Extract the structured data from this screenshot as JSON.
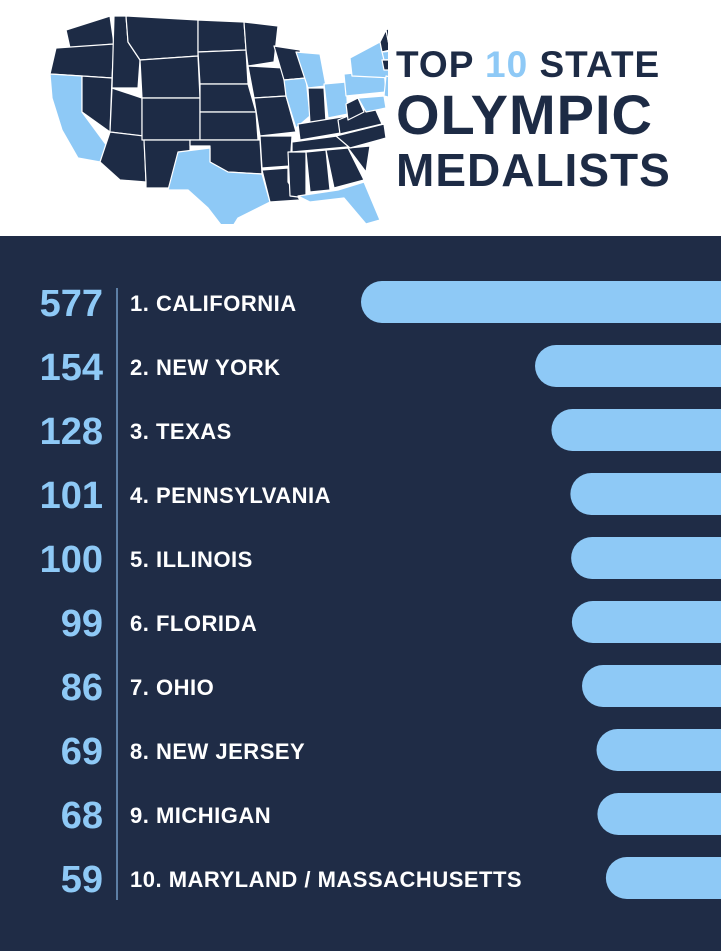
{
  "header": {
    "title_line1_a": "TOP ",
    "title_line1_accent": "10",
    "title_line1_b": " STATE",
    "title_line2": "OLYMPIC",
    "title_line3": "MEDALISTS"
  },
  "colors": {
    "navy": "#1f2c46",
    "accent": "#8ec9f6",
    "map_dark": "#1d2b45",
    "map_highlight": "#8ec9f6"
  },
  "map": {
    "highlighted_states": [
      "California",
      "New York",
      "Texas",
      "Pennsylvania",
      "Illinois",
      "Florida",
      "Ohio",
      "New Jersey",
      "Michigan",
      "Maryland",
      "Massachusetts"
    ]
  },
  "chart_data": {
    "type": "bar",
    "orientation": "horizontal",
    "categories": [
      "1. CALIFORNIA",
      "2. NEW YORK",
      "3. TEXAS",
      "4. PENNSYLVANIA",
      "5. ILLINOIS",
      "6. FLORIDA",
      "7. OHIO",
      "8. NEW JERSEY",
      "9. MICHIGAN",
      "10. MARYLAND / MASSACHUSETTS"
    ],
    "values": [
      577,
      154,
      128,
      101,
      100,
      99,
      86,
      69,
      68,
      59
    ],
    "value_labels": [
      "577",
      "154",
      "128",
      "101",
      "100",
      "99",
      "86",
      "69",
      "68",
      "59"
    ],
    "bars_aligned": "right",
    "grid": false,
    "legend": "none"
  }
}
